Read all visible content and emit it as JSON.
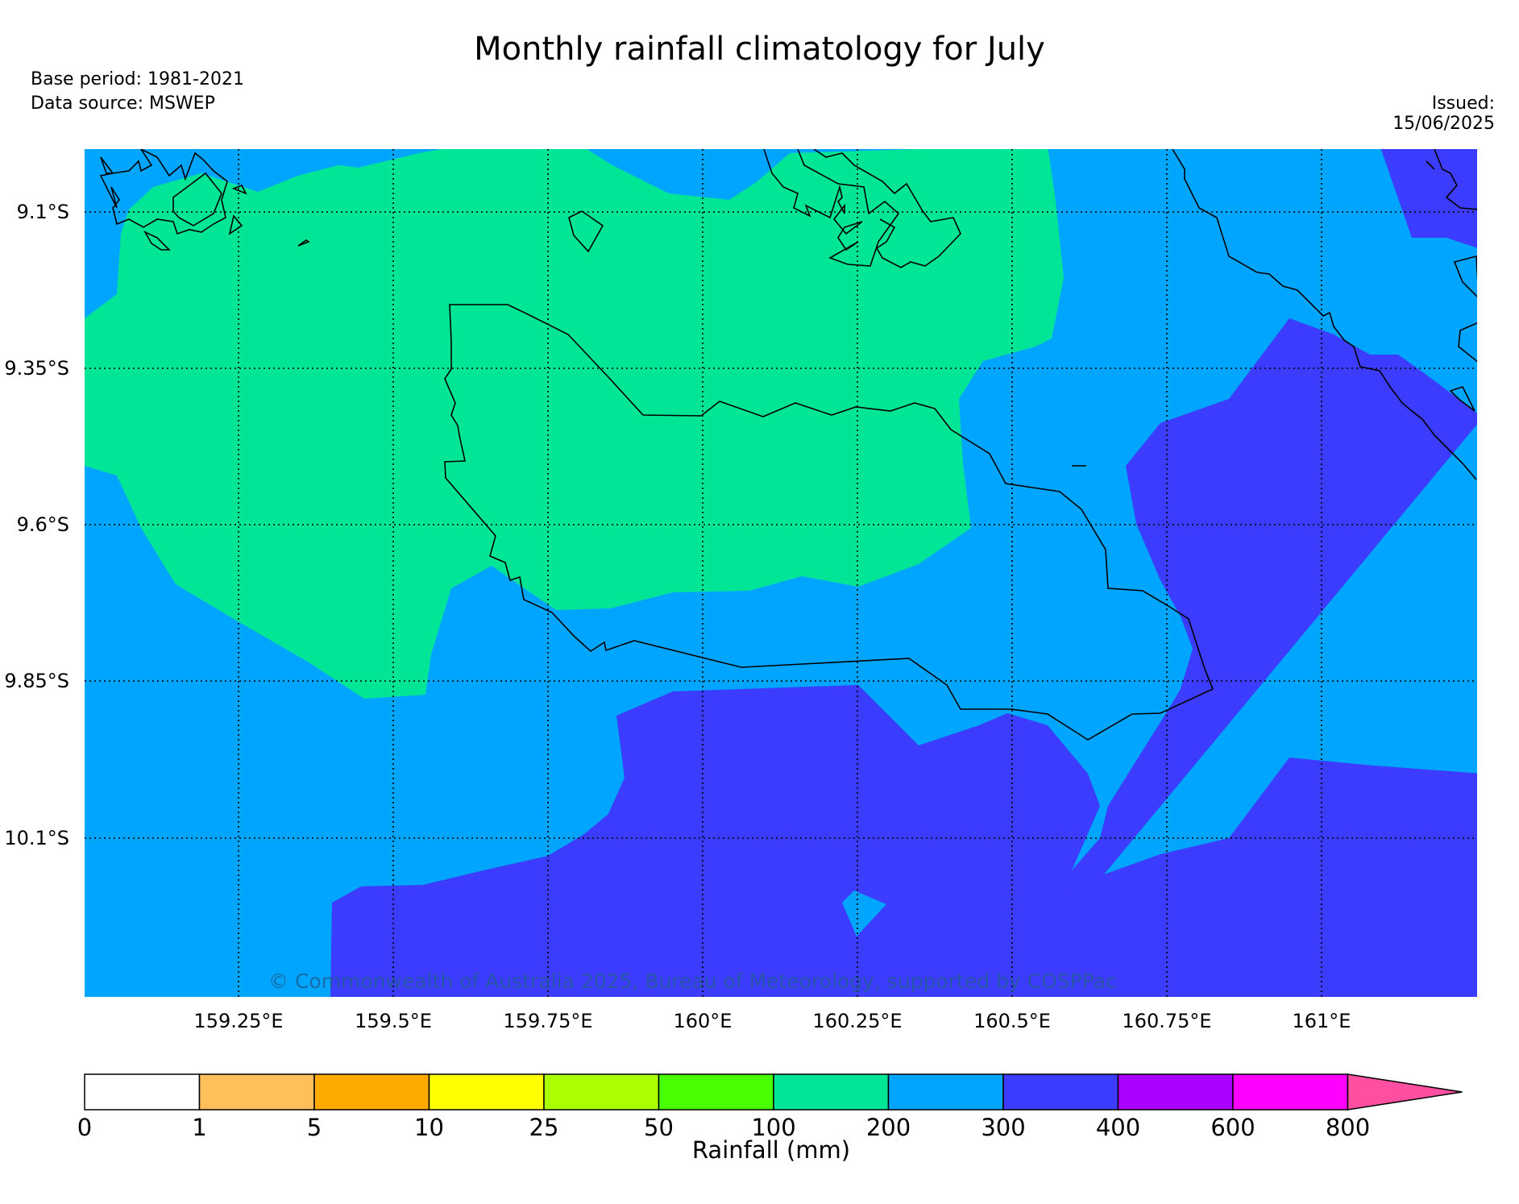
{
  "header": {
    "title": "Monthly rainfall climatology for July",
    "base_period": "Base period: 1981-2021",
    "data_source": "Data source: MSWEP",
    "issued": "Issued: 15/06/2025"
  },
  "map": {
    "lon_range": [
      159.0,
      161.25
    ],
    "lat_range": [
      -9.0,
      -10.35
    ],
    "lat_ticks": [
      {
        "value": -9.1,
        "label": "9.1°S"
      },
      {
        "value": -9.35,
        "label": "9.35°S"
      },
      {
        "value": -9.6,
        "label": "9.6°S"
      },
      {
        "value": -9.85,
        "label": "9.85°S"
      },
      {
        "value": -10.1,
        "label": "10.1°S"
      }
    ],
    "lon_ticks": [
      {
        "value": 159.25,
        "label": "159.25°E"
      },
      {
        "value": 159.5,
        "label": "159.5°E"
      },
      {
        "value": 159.75,
        "label": "159.75°E"
      },
      {
        "value": 160.0,
        "label": "160°E"
      },
      {
        "value": 160.25,
        "label": "160.25°E"
      },
      {
        "value": 160.5,
        "label": "160.5°E"
      },
      {
        "value": 160.75,
        "label": "160.75°E"
      },
      {
        "value": 161.0,
        "label": "161°E"
      }
    ],
    "credit": "© Commonwealth of Australia 2025, Bureau of Meteorology, supported by COSPPac",
    "rainfall_classes_shown_mm": [
      "100-200",
      "200-300",
      "300-400"
    ]
  },
  "colorbar": {
    "label": "Rainfall (mm)",
    "boundaries": [
      "0",
      "1",
      "5",
      "10",
      "25",
      "50",
      "100",
      "200",
      "300",
      "400",
      "600",
      "800"
    ],
    "colors": [
      "#ffffff",
      "#ffbf5a",
      "#ffaa00",
      "#ffff00",
      "#aaff00",
      "#48ff00",
      "#00e696",
      "#00a5ff",
      "#3c3cff",
      "#aa00ff",
      "#ff00ff"
    ],
    "extend_color": "#ff4fa0"
  },
  "colors": {
    "class_100_200": "#00e696",
    "class_200_300": "#00a5ff",
    "class_300_400": "#3c3cff"
  }
}
